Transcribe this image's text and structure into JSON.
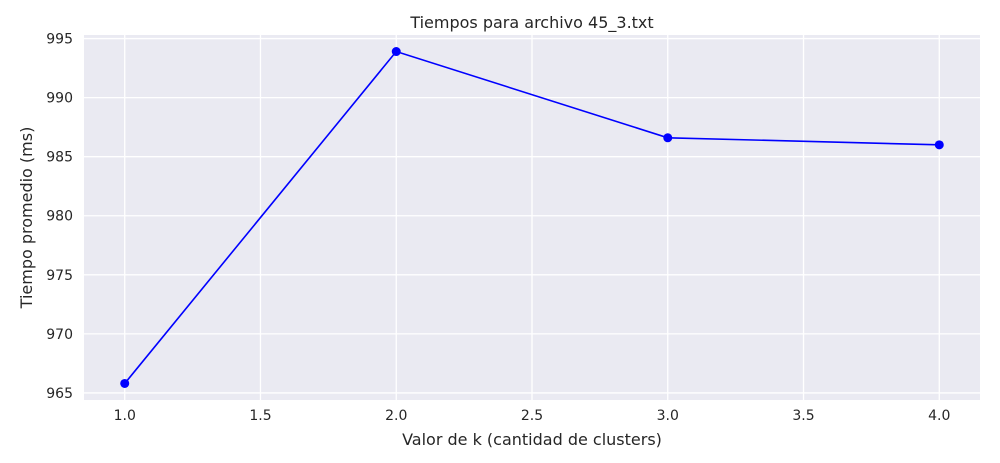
{
  "chart_data": {
    "type": "line",
    "title": "Tiempos para archivo 45_3.txt",
    "xlabel": "Valor de k (cantidad de clusters)",
    "ylabel": "Tiempo promedio (ms)",
    "x": [
      1.0,
      2.0,
      3.0,
      4.0
    ],
    "series": [
      {
        "values": [
          965.8,
          993.9,
          986.6,
          986.0
        ]
      }
    ],
    "xlim": [
      0.85,
      4.15
    ],
    "ylim": [
      964.4,
      995.3
    ],
    "xticks": [
      "1.0",
      "1.5",
      "2.0",
      "2.5",
      "3.0",
      "3.5",
      "4.0"
    ],
    "yticks": [
      "965",
      "970",
      "975",
      "980",
      "985",
      "990",
      "995"
    ],
    "grid": true,
    "colors": {
      "line": "#0000ff",
      "plot_bg": "#eaeaf2",
      "grid": "#ffffff"
    }
  }
}
